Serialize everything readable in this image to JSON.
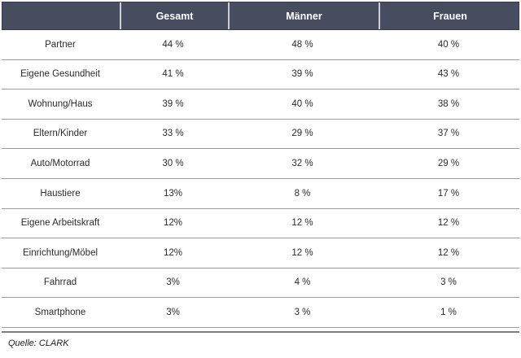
{
  "header": {
    "col0": "",
    "col1": "Gesamt",
    "col2": "Männer",
    "col3": "Frauen"
  },
  "rows": [
    {
      "label": "Partner",
      "gesamt": "44 %",
      "maenner": "48 %",
      "frauen": "40 %"
    },
    {
      "label": "Eigene Gesundheit",
      "gesamt": "41 %",
      "maenner": "39 %",
      "frauen": "43 %"
    },
    {
      "label": "Wohnung/Haus",
      "gesamt": "39 %",
      "maenner": "40 %",
      "frauen": "38 %"
    },
    {
      "label": "Eltern/Kinder",
      "gesamt": "33 %",
      "maenner": "29 %",
      "frauen": "37 %"
    },
    {
      "label": "Auto/Motorrad",
      "gesamt": "30 %",
      "maenner": "32 %",
      "frauen": "29 %"
    },
    {
      "label": "Haustiere",
      "gesamt": "13%",
      "maenner": "8 %",
      "frauen": "17 %"
    },
    {
      "label": "Eigene Arbeitskraft",
      "gesamt": "12%",
      "maenner": "12 %",
      "frauen": "12 %"
    },
    {
      "label": "Einrichtung/Möbel",
      "gesamt": "12%",
      "maenner": "12 %",
      "frauen": "12 %"
    },
    {
      "label": "Fahrrad",
      "gesamt": "3%",
      "maenner": "4 %",
      "frauen": "3 %"
    },
    {
      "label": "Smartphone",
      "gesamt": "3%",
      "maenner": "3 %",
      "frauen": "1 %"
    }
  ],
  "footer": {
    "source": "Quelle: CLARK"
  },
  "colors": {
    "header_bg": "#474c5f",
    "header_text": "#ffffff",
    "header_divider": "#ccced4",
    "row_separator": "#9b9ba3",
    "bottom_rule": "#7e7e7e",
    "body_text": "#2b2b2b"
  },
  "chart_data": {
    "type": "table",
    "columns": [
      "",
      "Gesamt",
      "Männer",
      "Frauen"
    ],
    "rows": [
      [
        "Partner",
        "44 %",
        "48 %",
        "40 %"
      ],
      [
        "Eigene Gesundheit",
        "41 %",
        "39 %",
        "43 %"
      ],
      [
        "Wohnung/Haus",
        "39 %",
        "40 %",
        "38 %"
      ],
      [
        "Eltern/Kinder",
        "33 %",
        "29 %",
        "37 %"
      ],
      [
        "Auto/Motorrad",
        "30 %",
        "32 %",
        "29 %"
      ],
      [
        "Haustiere",
        "13%",
        "8 %",
        "17 %"
      ],
      [
        "Eigene Arbeitskraft",
        "12%",
        "12 %",
        "12 %"
      ],
      [
        "Einrichtung/Möbel",
        "12%",
        "12 %",
        "12 %"
      ],
      [
        "Fahrrad",
        "3%",
        "4 %",
        "3 %"
      ],
      [
        "Smartphone",
        "3%",
        "3 %",
        "1 %"
      ]
    ],
    "categories": [
      "Partner",
      "Eigene Gesundheit",
      "Wohnung/Haus",
      "Eltern/Kinder",
      "Auto/Motorrad",
      "Haustiere",
      "Eigene Arbeitskraft",
      "Einrichtung/Möbel",
      "Fahrrad",
      "Smartphone"
    ],
    "series": [
      {
        "name": "Gesamt",
        "values": [
          44,
          41,
          39,
          33,
          30,
          13,
          12,
          12,
          3,
          3
        ]
      },
      {
        "name": "Männer",
        "values": [
          48,
          39,
          40,
          29,
          32,
          8,
          12,
          12,
          4,
          3
        ]
      },
      {
        "name": "Frauen",
        "values": [
          40,
          43,
          38,
          37,
          29,
          17,
          12,
          12,
          3,
          1
        ]
      }
    ],
    "unit": "%",
    "source": "Quelle: CLARK"
  }
}
